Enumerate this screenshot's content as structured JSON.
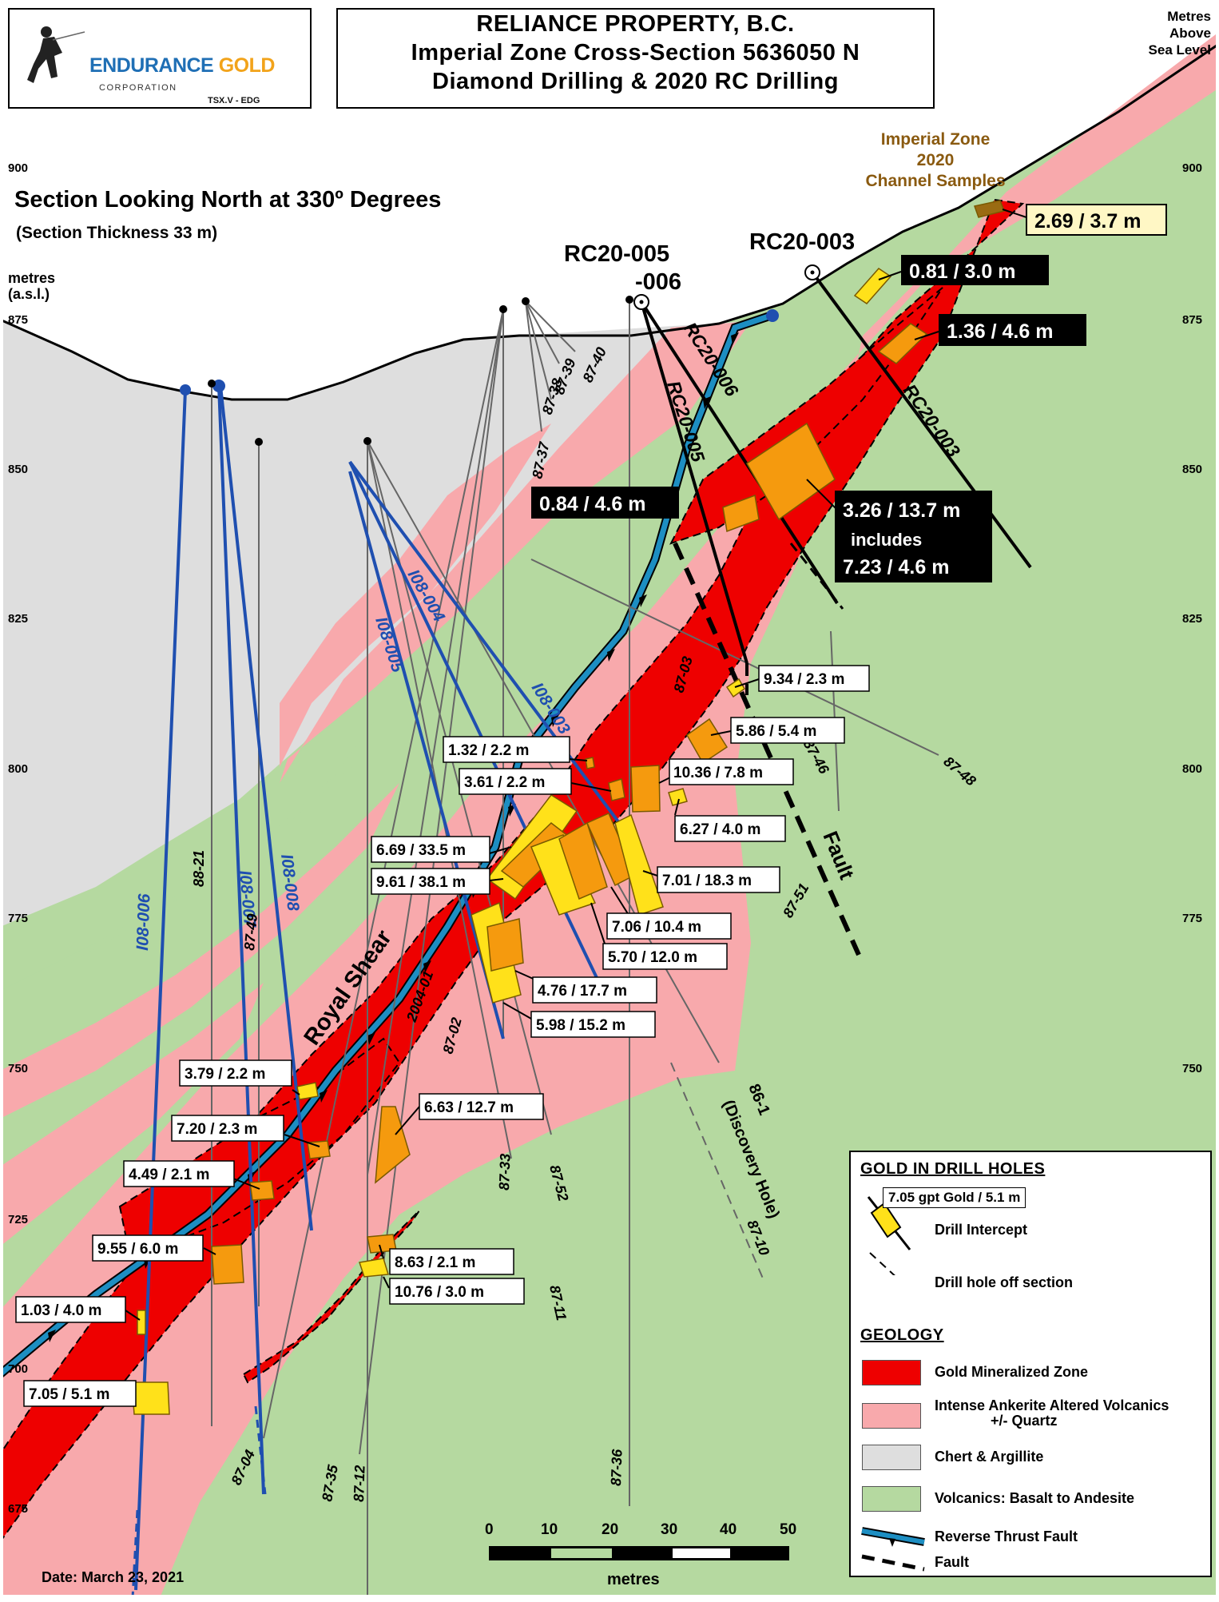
{
  "title": {
    "line1": "RELIANCE  PROPERTY, B.C.",
    "line2": "Imperial Zone Cross-Section 5636050 N",
    "line3": "Diamond Drilling & 2020 RC Drilling"
  },
  "logo": {
    "name_part1": "ENDURANCE",
    "name_part2": "GOLD",
    "corp": "CORPORATION",
    "ticker": "TSX.V - EDG"
  },
  "elevation_header": {
    "line1": "Metres",
    "line2": "Above",
    "line3": "Sea Level"
  },
  "section_note": {
    "looking": "Section Looking North at 330º Degrees",
    "thickness": "(Section Thickness 33 m)"
  },
  "left_axis_unit": {
    "line1": "metres",
    "line2": "(a.s.l.)"
  },
  "elevation_ticks": [
    "900",
    "875",
    "850",
    "825",
    "800",
    "775",
    "750",
    "725",
    "700",
    "675"
  ],
  "channel_samples": {
    "line1": "Imperial Zone",
    "line2": "2020",
    "line3": "Channel Samples"
  },
  "drill_holes": {
    "rc20_005_006": {
      "line1": "RC20-005",
      "line2": "-006"
    },
    "rc20_003": "RC20-003",
    "rc20_006": "RC20-006",
    "rc20_005": "RC20-005",
    "rc20_003_trace": "RC20-003",
    "i08_006": "I08-006",
    "i08_007": "I08-007",
    "i08_008": "I08-008",
    "i08_004": "I08-004",
    "i08_005": "I08-005",
    "i08_003": "I08-003",
    "h88_21": "88-21",
    "h87_49": "87-49",
    "h87_40": "87-40",
    "h87_39": "87-39",
    "h87_38": "87-38",
    "h87_37": "87-37",
    "h87_03": "87-03",
    "h87_46": "87-46",
    "h87_48": "87-48",
    "h87_51": "87-51",
    "h2004_01": "2004-01",
    "h87_02": "87-02",
    "h87_33": "87-33",
    "h87_52": "87-52",
    "h87_11": "87-11",
    "h87_10": "87-10",
    "h86_1": "86-1",
    "discovery": "(Discovery Hole)",
    "h87_04": "87-04",
    "h87_35": "87-35",
    "h87_12": "87-12",
    "h87_36": "87-36"
  },
  "structures": {
    "royal_shear": "Royal Shear",
    "fault": "Fault"
  },
  "intercepts": {
    "channel": "2.69 / 3.7 m",
    "a081": "0.81 / 3.0 m",
    "a136": "1.36 / 4.6 m",
    "a084": "0.84 / 4.6 m",
    "a326": "3.26 / 13.7 m",
    "includes": "includes",
    "a723": "7.23 / 4.6 m",
    "b934": "9.34 / 2.3 m",
    "b586": "5.86 / 5.4 m",
    "b132": "1.32 /  2.2 m",
    "b1036": "10.36 / 7.8 m",
    "b361": "3.61 / 2.2 m",
    "b627": "6.27 / 4.0 m",
    "b669": "6.69 / 33.5 m",
    "b961": "9.61 / 38.1 m",
    "b701": "7.01 / 18.3 m",
    "b706": "7.06 / 10.4 m",
    "b570": "5.70 / 12.0 m",
    "b476": "4.76 / 17.7 m",
    "b598": "5.98 / 15.2 m",
    "c663": "6.63 / 12.7 m",
    "c379": "3.79 / 2.2 m",
    "c720": "7.20 / 2.3 m",
    "c449": "4.49 / 2.1 m",
    "c955": "9.55 / 6.0 m",
    "c863": "8.63 / 2.1 m",
    "c1076": "10.76 / 3.0 m",
    "c103": "1.03 / 4.0 m",
    "c705": "7.05 / 5.1 m"
  },
  "scale": {
    "ticks": [
      "0",
      "10",
      "20",
      "30",
      "40",
      "50"
    ],
    "unit": "metres"
  },
  "date": "Date:  March 23, 2021",
  "legend": {
    "gold_heading": "GOLD IN DRILL HOLES",
    "example_label": "7.05 gpt Gold / 5.1 m",
    "drill_intercept": "Drill Intercept",
    "off_section": "Drill hole off section",
    "geology_heading": "GEOLOGY",
    "gold_zone": "Gold Mineralized Zone",
    "ankerite_line1": "Intense Ankerite Altered Volcanics",
    "ankerite_line2": "+/- Quartz",
    "chert": "Chert & Argillite",
    "volcanics": "Volcanics:  Basalt to Andesite",
    "thrust": "Reverse Thrust Fault",
    "fault": "Fault"
  },
  "colors": {
    "gold_zone": "#ee0000",
    "ankerite": "#f8a9ac",
    "chert": "#dedede",
    "volcanics": "#b5d9a0",
    "thrust_fill": "#1d8ec2",
    "blue_holes": "#1f4fb0",
    "intercept_yellow": "#ffe11a",
    "intercept_orange": "#f59a0e",
    "channel_brown": "#8a5a10"
  }
}
